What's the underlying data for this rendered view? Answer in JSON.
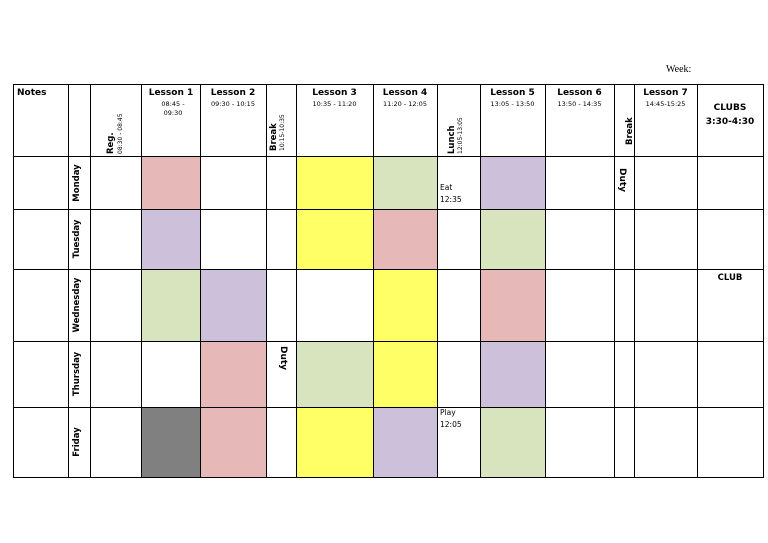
{
  "week_label": "Week:",
  "headers": {
    "notes": "Notes",
    "reg": {
      "title": "Reg.",
      "time": "08:30 - 08:45"
    },
    "lesson1": {
      "title": "Lesson 1",
      "time": "08:45 - 09:30"
    },
    "lesson2": {
      "title": "Lesson 2",
      "time": "09:30 - 10:15"
    },
    "break1": {
      "title": "Break",
      "time": "10:15-10:35"
    },
    "lesson3": {
      "title": "Lesson 3",
      "time": "10:35 - 11:20"
    },
    "lesson4": {
      "title": "Lesson 4",
      "time": "11:20 - 12:05"
    },
    "lunch": {
      "title": "Lunch",
      "time": "12:05-13:05"
    },
    "lesson5": {
      "title": "Lesson 5",
      "time": "13:05 - 13:50"
    },
    "lesson6": {
      "title": "Lesson 6",
      "time": "13:50 - 14:35"
    },
    "break2": {
      "title": "Break"
    },
    "lesson7": {
      "title": "Lesson 7",
      "time": "14:45-15:25"
    },
    "clubs": {
      "title": "CLUBS",
      "time": "3:30-4:30"
    }
  },
  "days": [
    "Monday",
    "Tuesday",
    "Wednesday",
    "Thursday",
    "Friday"
  ],
  "notes": {
    "monday_lunch": [
      "Eat",
      "12:35"
    ],
    "friday_lunch": [
      "Play",
      "12:05"
    ],
    "monday_break2": "Duty",
    "thursday_break1": "Duty",
    "wednesday_clubs": "CLUB"
  },
  "colors": {
    "pink": "#e6b8b8",
    "purple": "#ccc0da",
    "green": "#d7e4bd",
    "yellow": "#ffff66",
    "gray": "#808080"
  }
}
